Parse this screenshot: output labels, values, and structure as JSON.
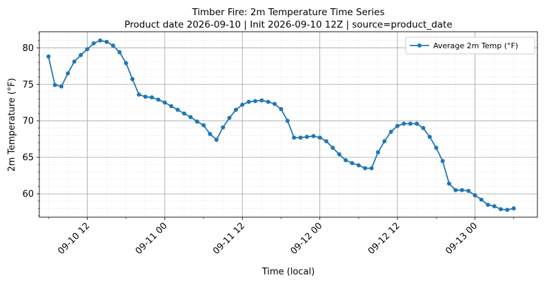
{
  "chart_data": {
    "type": "line",
    "title": "Timber Fire: 2m Temperature Time Series",
    "subtitle": "Product date 2026-09-10 | Init 2026-09-10 12Z | source=product_date",
    "xlabel": "Time (local)",
    "ylabel": "2m Temperature (°F)",
    "ylim": [
      56.8,
      82.2
    ],
    "xlim": [
      "2026-09-10 04:35",
      "2026-09-13 09:40"
    ],
    "yticks": [
      60,
      65,
      70,
      75,
      80
    ],
    "ytick_labels": [
      "60",
      "65",
      "70",
      "75",
      "80"
    ],
    "xticks": [
      "2026-09-10 12:00",
      "2026-09-11 00:00",
      "2026-09-11 12:00",
      "2026-09-12 00:00",
      "2026-09-12 12:00",
      "2026-09-13 00:00"
    ],
    "xtick_labels": [
      "09-10 12",
      "09-11 00",
      "09-11 12",
      "09-12 00",
      "09-12 12",
      "09-13 00"
    ],
    "grid": true,
    "legend_position": "top-right",
    "series": [
      {
        "name": "Average 2m Temp (°F)",
        "color": "#1f77b4",
        "marker": "circle",
        "x": [
          "2026-09-10 06:00",
          "2026-09-10 07:00",
          "2026-09-10 08:00",
          "2026-09-10 09:00",
          "2026-09-10 10:00",
          "2026-09-10 11:00",
          "2026-09-10 12:00",
          "2026-09-10 13:00",
          "2026-09-10 14:00",
          "2026-09-10 15:00",
          "2026-09-10 16:00",
          "2026-09-10 17:00",
          "2026-09-10 18:00",
          "2026-09-10 19:00",
          "2026-09-10 20:00",
          "2026-09-10 21:00",
          "2026-09-10 22:00",
          "2026-09-10 23:00",
          "2026-09-11 00:00",
          "2026-09-11 01:00",
          "2026-09-11 02:00",
          "2026-09-11 03:00",
          "2026-09-11 04:00",
          "2026-09-11 05:00",
          "2026-09-11 06:00",
          "2026-09-11 07:00",
          "2026-09-11 08:00",
          "2026-09-11 09:00",
          "2026-09-11 10:00",
          "2026-09-11 11:00",
          "2026-09-11 12:00",
          "2026-09-11 13:00",
          "2026-09-11 14:00",
          "2026-09-11 15:00",
          "2026-09-11 16:00",
          "2026-09-11 17:00",
          "2026-09-11 18:00",
          "2026-09-11 19:00",
          "2026-09-11 20:00",
          "2026-09-11 21:00",
          "2026-09-11 22:00",
          "2026-09-11 23:00",
          "2026-09-12 00:00",
          "2026-09-12 01:00",
          "2026-09-12 02:00",
          "2026-09-12 03:00",
          "2026-09-12 04:00",
          "2026-09-12 05:00",
          "2026-09-12 06:00",
          "2026-09-12 07:00",
          "2026-09-12 08:00",
          "2026-09-12 09:00",
          "2026-09-12 10:00",
          "2026-09-12 11:00",
          "2026-09-12 12:00",
          "2026-09-12 13:00",
          "2026-09-12 14:00",
          "2026-09-12 15:00",
          "2026-09-12 16:00",
          "2026-09-12 17:00",
          "2026-09-12 18:00",
          "2026-09-12 19:00",
          "2026-09-12 20:00",
          "2026-09-12 21:00",
          "2026-09-12 22:00",
          "2026-09-12 23:00",
          "2026-09-13 00:00",
          "2026-09-13 01:00",
          "2026-09-13 02:00",
          "2026-09-13 03:00",
          "2026-09-13 04:00",
          "2026-09-13 05:00",
          "2026-09-13 06:00"
        ],
        "y": [
          78.8,
          74.9,
          74.7,
          76.5,
          78.1,
          79.0,
          79.8,
          80.6,
          81.0,
          80.8,
          80.3,
          79.4,
          77.9,
          75.7,
          73.6,
          73.3,
          73.2,
          72.9,
          72.5,
          72.0,
          71.5,
          71.0,
          70.5,
          69.9,
          69.4,
          68.2,
          67.4,
          69.1,
          70.4,
          71.5,
          72.2,
          72.6,
          72.7,
          72.8,
          72.6,
          72.3,
          71.6,
          70.0,
          67.7,
          67.7,
          67.8,
          67.9,
          67.7,
          67.2,
          66.3,
          65.4,
          64.6,
          64.2,
          63.9,
          63.5,
          63.5,
          65.7,
          67.2,
          68.5,
          69.3,
          69.6,
          69.6,
          69.6,
          69.0,
          67.8,
          66.3,
          64.5,
          61.4,
          60.5,
          60.5,
          60.4,
          59.8,
          59.2,
          58.5,
          58.3,
          57.9,
          57.8,
          58.0
        ]
      }
    ]
  }
}
